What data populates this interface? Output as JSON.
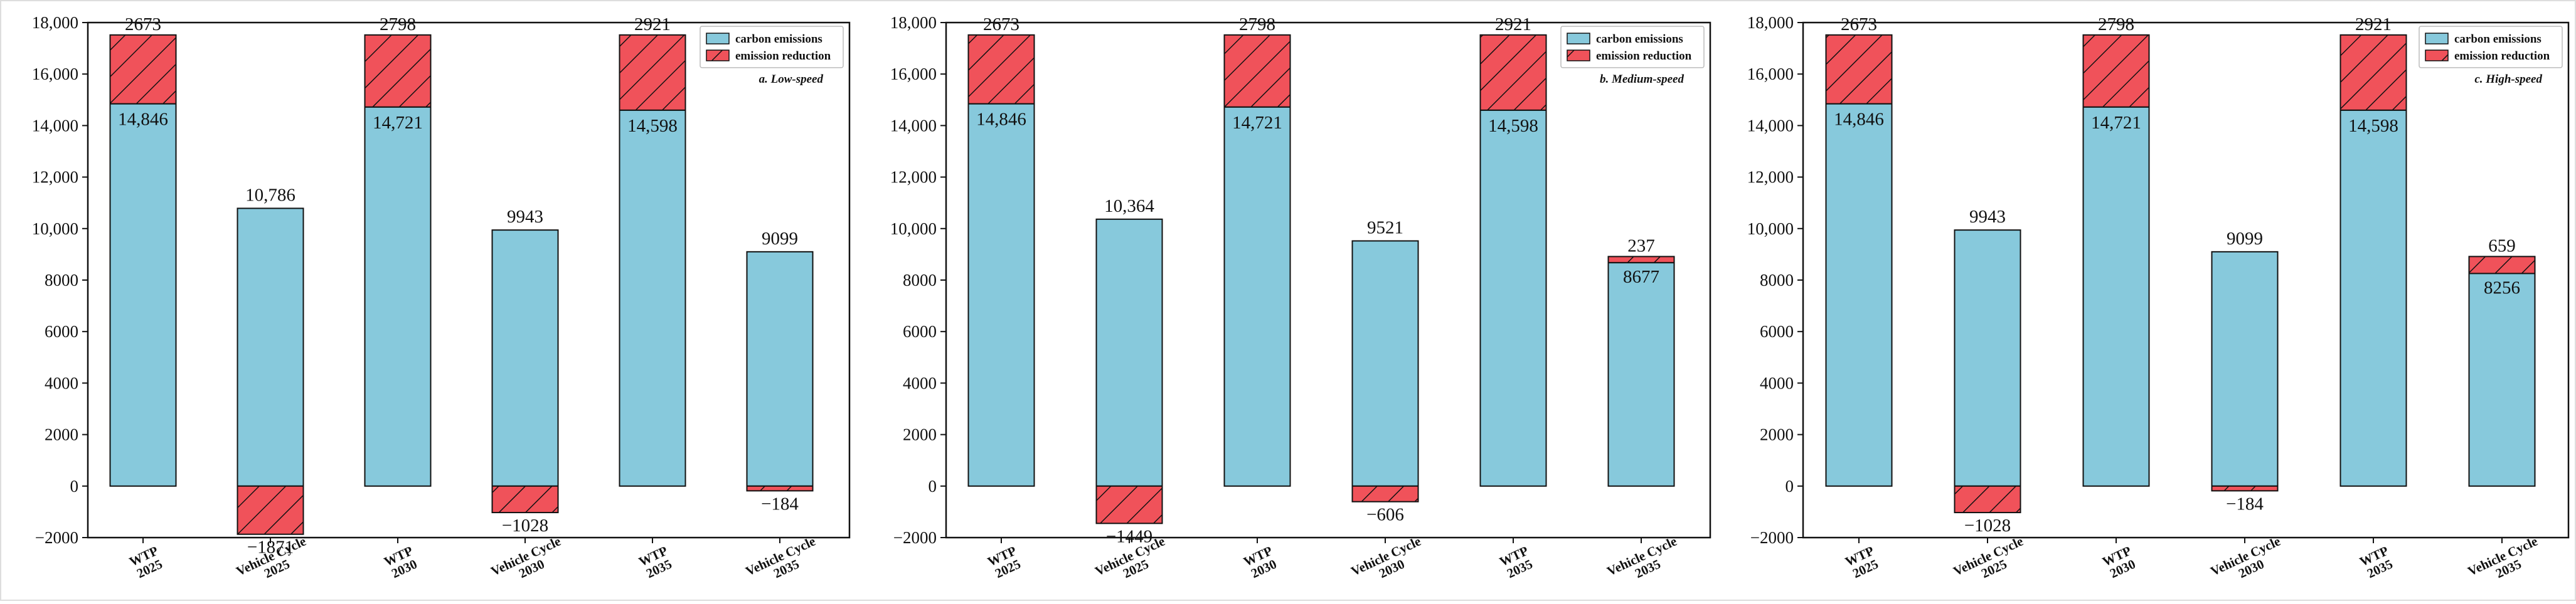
{
  "colors": {
    "carbon": "#87c9dc",
    "reduction": "#f0525a",
    "axis": "#111111"
  },
  "chart_data": [
    {
      "type": "bar",
      "panel_title": "a. Low-speed",
      "legend": [
        "carbon emissions",
        "emission reduction"
      ],
      "categories": [
        [
          "WTP",
          "2025"
        ],
        [
          "Vehicle Cycle",
          "2025"
        ],
        [
          "WTP",
          "2030"
        ],
        [
          "Vehicle Cycle",
          "2030"
        ],
        [
          "WTP",
          "2035"
        ],
        [
          "Vehicle Cycle",
          "2035"
        ]
      ],
      "series": [
        {
          "name": "carbon emissions",
          "values": [
            14846,
            10786,
            14721,
            9943,
            14598,
            9099
          ]
        },
        {
          "name": "emission reduction",
          "values": [
            2673,
            -1871,
            2798,
            -1028,
            2921,
            -184
          ]
        }
      ],
      "carbon_labels": [
        "14,846",
        "10,786",
        "14,721",
        "9943",
        "14,598",
        "9099"
      ],
      "reduction_labels": [
        "2673",
        "−1871",
        "2798",
        "−1028",
        "2921",
        "−184"
      ],
      "ylim": [
        -2000,
        18000
      ],
      "yticks": [
        -2000,
        0,
        2000,
        4000,
        6000,
        8000,
        10000,
        12000,
        14000,
        16000,
        18000
      ],
      "ytick_labels": [
        "−2000",
        "0",
        "2000",
        "4000",
        "6000",
        "8000",
        "10,000",
        "12,000",
        "14,000",
        "16,000",
        "18,000"
      ]
    },
    {
      "type": "bar",
      "panel_title": "b. Medium-speed",
      "legend": [
        "carbon emissions",
        "emission reduction"
      ],
      "categories": [
        [
          "WTP",
          "2025"
        ],
        [
          "Vehicle Cycle",
          "2025"
        ],
        [
          "WTP",
          "2030"
        ],
        [
          "Vehicle Cycle",
          "2030"
        ],
        [
          "WTP",
          "2035"
        ],
        [
          "Vehicle Cycle",
          "2035"
        ]
      ],
      "series": [
        {
          "name": "carbon emissions",
          "values": [
            14846,
            10364,
            14721,
            9521,
            14598,
            8677
          ]
        },
        {
          "name": "emission reduction",
          "values": [
            2673,
            -1449,
            2798,
            -606,
            2921,
            237
          ]
        }
      ],
      "carbon_labels": [
        "14,846",
        "10,364",
        "14,721",
        "9521",
        "14,598",
        "8677"
      ],
      "reduction_labels": [
        "2673",
        "−1449",
        "2798",
        "−606",
        "2921",
        "237"
      ],
      "ylim": [
        -2000,
        18000
      ],
      "yticks": [
        -2000,
        0,
        2000,
        4000,
        6000,
        8000,
        10000,
        12000,
        14000,
        16000,
        18000
      ],
      "ytick_labels": [
        "−2000",
        "0",
        "2000",
        "4000",
        "6000",
        "8000",
        "10,000",
        "12,000",
        "14,000",
        "16,000",
        "18,000"
      ]
    },
    {
      "type": "bar",
      "panel_title": "c. High-speed",
      "legend": [
        "carbon emissions",
        "emission reduction"
      ],
      "categories": [
        [
          "WTP",
          "2025"
        ],
        [
          "Vehicle Cycle",
          "2025"
        ],
        [
          "WTP",
          "2030"
        ],
        [
          "Vehicle Cycle",
          "2030"
        ],
        [
          "WTP",
          "2035"
        ],
        [
          "Vehicle Cycle",
          "2035"
        ]
      ],
      "series": [
        {
          "name": "carbon emissions",
          "values": [
            14846,
            9943,
            14721,
            9099,
            14598,
            8256
          ]
        },
        {
          "name": "emission reduction",
          "values": [
            2673,
            -1028,
            2798,
            -184,
            2921,
            659
          ]
        }
      ],
      "carbon_labels": [
        "14,846",
        "9943",
        "14,721",
        "9099",
        "14,598",
        "8256"
      ],
      "reduction_labels": [
        "2673",
        "−1028",
        "2798",
        "−184",
        "2921",
        "659"
      ],
      "ylim": [
        -2000,
        18000
      ],
      "yticks": [
        -2000,
        0,
        2000,
        4000,
        6000,
        8000,
        10000,
        12000,
        14000,
        16000,
        18000
      ],
      "ytick_labels": [
        "−2000",
        "0",
        "2000",
        "4000",
        "6000",
        "8000",
        "10,000",
        "12,000",
        "14,000",
        "16,000",
        "18,000"
      ]
    }
  ]
}
